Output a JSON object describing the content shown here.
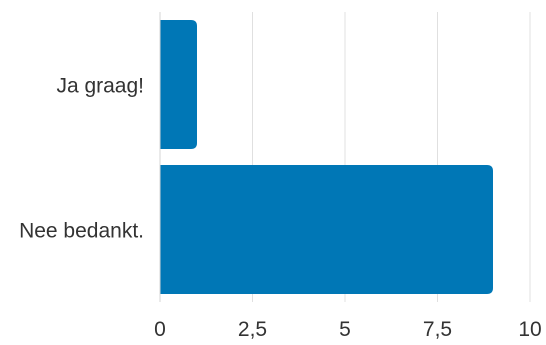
{
  "chart_data": {
    "type": "bar",
    "orientation": "horizontal",
    "title": "",
    "xlabel": "",
    "ylabel": "",
    "categories": [
      "Ja graag!",
      "Nee bedankt."
    ],
    "values": [
      1,
      9
    ],
    "xlim": [
      0,
      10
    ],
    "x_ticks": [
      0,
      2.5,
      5,
      7.5,
      10
    ],
    "x_tick_labels": [
      "0",
      "2,5",
      "5",
      "7,5",
      "10"
    ],
    "grid": "vertical",
    "legend": "none"
  },
  "colors": {
    "bar": "#0077b6",
    "grid": "#e0e0e0",
    "axis": "#d6d6d6",
    "text": "#333333"
  }
}
